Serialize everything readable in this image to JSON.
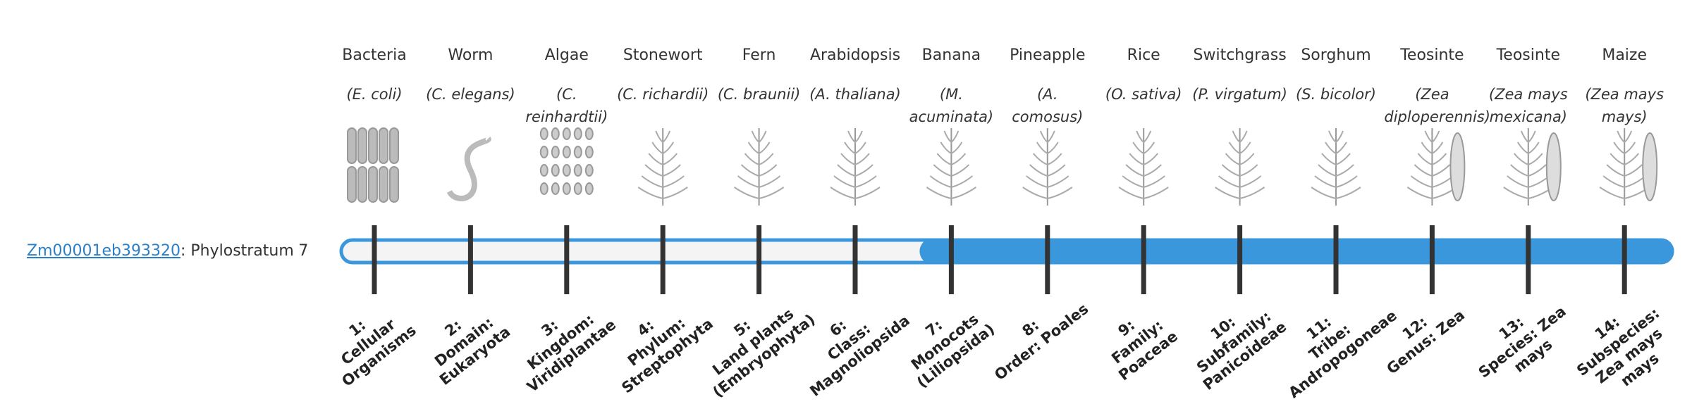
{
  "gene": {
    "id": "Zm00001eb393320",
    "prefix": ": Phylostratum",
    "stratum": 7
  },
  "organisms": [
    {
      "name": "Bacteria",
      "latin": "(E. coli)"
    },
    {
      "name": "Worm",
      "latin": "(C. elegans)"
    },
    {
      "name": "Algae",
      "latin": "(C. reinhardtii)"
    },
    {
      "name": "Stonewort",
      "latin": "(C. richardii)"
    },
    {
      "name": "Fern",
      "latin": "(C. braunii)"
    },
    {
      "name": "Arabidopsis",
      "latin": "(A. thaliana)"
    },
    {
      "name": "Banana",
      "latin": "(M. acuminata)"
    },
    {
      "name": "Pineapple",
      "latin": "(A. comosus)"
    },
    {
      "name": "Rice",
      "latin": "(O. sativa)"
    },
    {
      "name": "Switchgrass",
      "latin": "(P. virgatum)"
    },
    {
      "name": "Sorghum",
      "latin": "(S. bicolor)"
    },
    {
      "name": "Teosinte",
      "latin": "(Zea diploperennis)"
    },
    {
      "name": "Teosinte",
      "latin": "(Zea mays mexicana)"
    },
    {
      "name": "Maize",
      "latin": "(Zea mays mays)"
    }
  ],
  "strata": [
    {
      "number": "1:",
      "name": "Cellular Organisms"
    },
    {
      "number": "2:",
      "name": "Domain: Eukaryota"
    },
    {
      "number": "3:",
      "name": "Kingdom: Viridiplantae"
    },
    {
      "number": "4:",
      "name": "Phylum: Streptophyta"
    },
    {
      "number": "5:",
      "name": "Land plants (Embryophyta)"
    },
    {
      "number": "6:",
      "name": "Class: Magnoliopsida"
    },
    {
      "number": "7:",
      "name": "Monocots (Liliopsida)"
    },
    {
      "number": "8:",
      "name": "Order: Poales"
    },
    {
      "number": "9:",
      "name": "Family: Poaceae"
    },
    {
      "number": "10:",
      "name": "Subfamily: Panicoideae"
    },
    {
      "number": "11:",
      "name": "Tribe: Andropogoneae"
    },
    {
      "number": "12:",
      "name": "Genus: Zea"
    },
    {
      "number": "13:",
      "name": "Species: Zea mays"
    },
    {
      "number": "14:",
      "name": "Subspecies: Zea mays mays"
    }
  ]
}
